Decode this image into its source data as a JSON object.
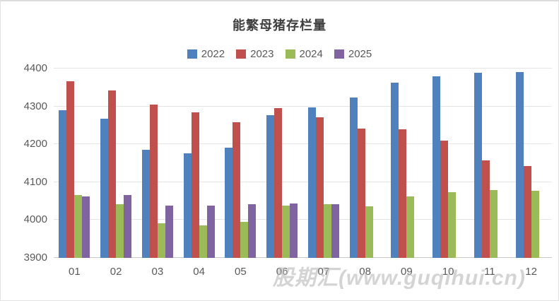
{
  "watermark": "股期汇(www.guqihui.cn)",
  "chart_data": {
    "type": "bar",
    "title": "能繁母猪存栏量",
    "categories": [
      "01",
      "02",
      "03",
      "04",
      "05",
      "06",
      "07",
      "08",
      "09",
      "10",
      "11",
      "12"
    ],
    "series": [
      {
        "name": "2022",
        "color": "#4F81BD",
        "values": [
          4290,
          4268,
          4185,
          4177,
          4192,
          4277,
          4298,
          4324,
          4362,
          4379,
          4388,
          4390
        ]
      },
      {
        "name": "2023",
        "color": "#C0504D",
        "values": [
          4367,
          4343,
          4305,
          4284,
          4258,
          4296,
          4271,
          4241,
          4240,
          4210,
          4158,
          4142
        ]
      },
      {
        "name": "2024",
        "color": "#9BBB59",
        "values": [
          4067,
          4042,
          3992,
          3986,
          3996,
          4038,
          4041,
          4036,
          4062,
          4073,
          4080,
          4078
        ]
      },
      {
        "name": "2025",
        "color": "#8064A2",
        "values": [
          4062,
          4066,
          4039,
          4038,
          4042,
          4043,
          4042,
          null,
          null,
          null,
          null,
          null
        ]
      }
    ],
    "ylim": [
      3900,
      4400
    ],
    "yticks": [
      3900,
      4000,
      4100,
      4200,
      4300,
      4400
    ],
    "xlabel": "",
    "ylabel": "",
    "grid": true,
    "legend_position": "top",
    "colors": {
      "grid": "#e4e4e4",
      "axis": "#c9c9c9",
      "text": "#595959",
      "title": "#3f3f3f",
      "watermark": "#b9b9b9"
    }
  }
}
